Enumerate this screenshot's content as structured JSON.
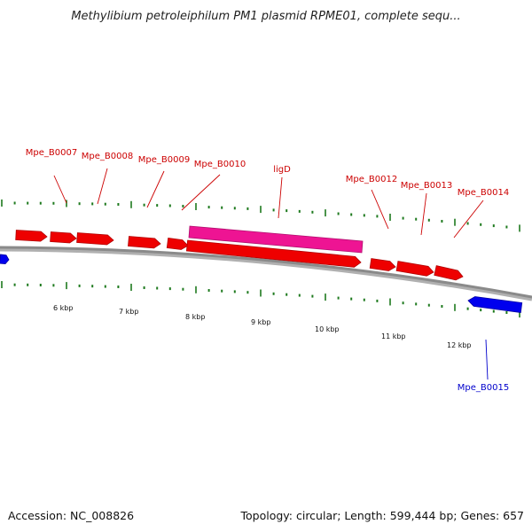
{
  "title": "Methylibium petroleiphilum PM1 plasmid RPME01, complete sequ...",
  "footer": {
    "accession": "Accession: NC_008826",
    "summary": "Topology: circular; Length: 599,444 bp; Genes: 657"
  },
  "colors": {
    "gene_red": "#ee0000",
    "gene_pink": "#ee1493",
    "gene_blue": "#0000ee",
    "label_red": "#cc0000",
    "label_blue": "#0000cc",
    "tick_green": "#1e7a1e",
    "backbone": "#8a8a8a"
  },
  "scale_labels": [
    "6 kbp",
    "7 kbp",
    "8 kbp",
    "9 kbp",
    "10 kbp",
    "11 kbp",
    "12 kbp"
  ],
  "gene_labels": [
    "Mpe_B0007",
    "Mpe_B0008",
    "Mpe_B0009",
    "Mpe_B0010",
    "ligD",
    "Mpe_B0012",
    "Mpe_B0013",
    "Mpe_B0014",
    "Mpe_B0015"
  ]
}
